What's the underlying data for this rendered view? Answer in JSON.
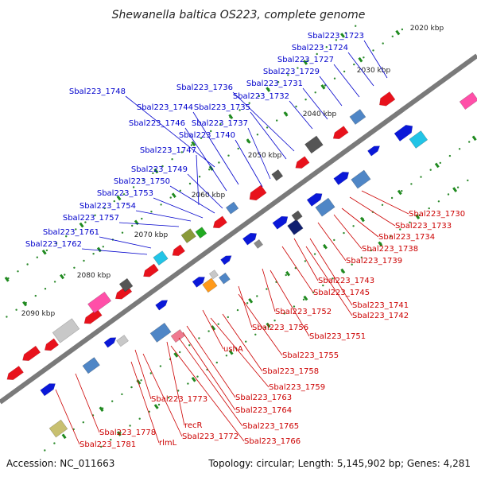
{
  "title": "Shewanella baltica OS223, complete genome",
  "footer": {
    "accession": "Accession: NC_011663",
    "summary": "Topology: circular; Length: 5,145,902 bp; Genes: 4,281"
  },
  "colors": {
    "forward": "#0000cc",
    "reverse": "#cc0000",
    "backbone": "#777777",
    "tick": "#228b22"
  },
  "kbp_labels": [
    "2020 kbp",
    "2030 kbp",
    "2040 kbp",
    "2050 kbp",
    "2060 kbp",
    "2070 kbp",
    "2080 kbp",
    "2090 kbp"
  ],
  "forward_labels": [
    "Sbal223_1723",
    "Sbal223_1724",
    "Sbal223_1727",
    "Sbal223_1729",
    "Sbal223_1731",
    "Sbal223_1732",
    "Sbal223_1736",
    "Sbal223_1735",
    "Sbal223_1748",
    "Sbal223_1744",
    "Sbal223_1746",
    "Sbal223_1737",
    "Sbal223_1740",
    "Sbal223_1747",
    "Sbal223_1749",
    "Sbal223_1750",
    "Sbal223_1753",
    "Sbal223_1754",
    "Sbal223_1757",
    "Sbal223_1761",
    "Sbal223_1762"
  ],
  "reverse_labels": [
    "Sbal223_1730",
    "Sbal223_1733",
    "Sbal223_1734",
    "Sbal223_1738",
    "Sbal223_1739",
    "Sbal223_1743",
    "Sbal223_1745",
    "Sbal223_1741",
    "Sbal223_1742",
    "Sbal223_1752",
    "Sbal223_1756",
    "Sbal223_1751",
    "ushA",
    "Sbal223_1755",
    "Sbal223_1758",
    "Sbal223_1759",
    "Sbal223_1773",
    "Sbal223_1763",
    "Sbal223_1764",
    "recR",
    "Sbal223_1765",
    "Sbal223_1778",
    "Sbal223_1772",
    "Sbal223_1766",
    "rlmL",
    "Sbal223_1781"
  ]
}
